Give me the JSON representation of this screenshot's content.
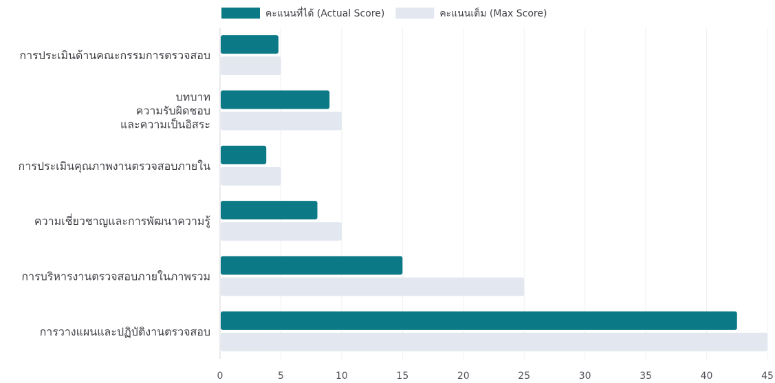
{
  "chart_data": {
    "type": "bar",
    "orientation": "horizontal",
    "categories": [
      [
        "การประเมินด้านคณะกรรมการตรวจสอบ"
      ],
      [
        "บทบาท",
        "ความรับผิดชอบ",
        "และความเป็นอิสระ"
      ],
      [
        "การประเมินคุณภาพงานตรวจสอบภายใน"
      ],
      [
        "ความเชี่ยวชาญและการพัฒนาความรู้"
      ],
      [
        "การบริหารงานตรวจสอบภายในภาพรวม"
      ],
      [
        "การวางแผนและปฏิบัติงานตรวจสอบ"
      ]
    ],
    "series": [
      {
        "name": "คะแนนที่ได้ (Actual Score)",
        "color": "#0b7a86",
        "values": [
          4.8,
          9.0,
          3.8,
          8.0,
          15.0,
          42.5
        ]
      },
      {
        "name": "คะแนนเต็ม (Max Score)",
        "color": "#e3e8f0",
        "values": [
          5,
          10,
          5,
          10,
          25,
          45
        ]
      }
    ],
    "xlim": [
      0,
      45
    ],
    "xticks": [
      0,
      5,
      10,
      15,
      20,
      25,
      30,
      35,
      40,
      45
    ],
    "title": "",
    "xlabel": "",
    "ylabel": "",
    "grid": true,
    "legend_position": "top"
  }
}
